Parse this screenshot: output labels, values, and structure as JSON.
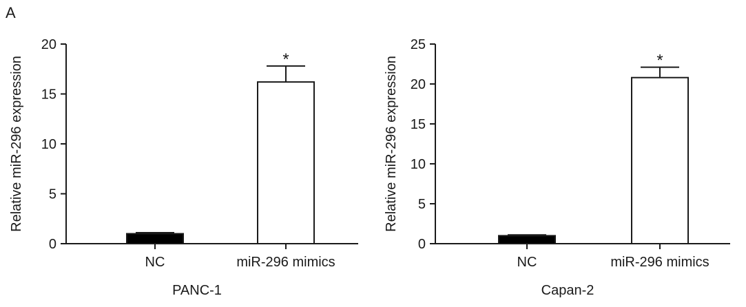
{
  "figure": {
    "panel_letter": "A"
  },
  "chart_data": [
    {
      "type": "bar",
      "categories": [
        "NC",
        "miR-296 mimics"
      ],
      "values": [
        1.0,
        16.2
      ],
      "errors": [
        0.1,
        1.6
      ],
      "bar_colors": [
        "#000000",
        "#ffffff"
      ],
      "significance": [
        "",
        "*"
      ],
      "ylabel": "Relative miR-296 expression",
      "xlabel": "PANC-1",
      "ylim": [
        0,
        20
      ],
      "yticks": [
        0,
        5,
        10,
        15,
        20
      ]
    },
    {
      "type": "bar",
      "categories": [
        "NC",
        "miR-296 mimics"
      ],
      "values": [
        1.0,
        20.8
      ],
      "errors": [
        0.1,
        1.3
      ],
      "bar_colors": [
        "#000000",
        "#ffffff"
      ],
      "significance": [
        "",
        "*"
      ],
      "ylabel": "Relative miR-296 expression",
      "xlabel": "Capan-2",
      "ylim": [
        0,
        25
      ],
      "yticks": [
        0,
        5,
        10,
        15,
        20,
        25
      ]
    }
  ]
}
